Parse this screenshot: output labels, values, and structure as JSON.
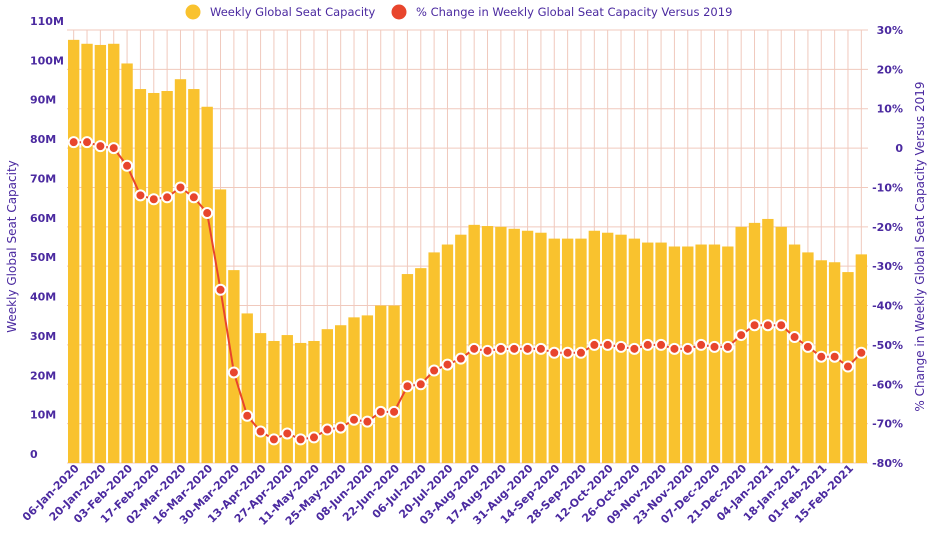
{
  "chart_data": {
    "type": "bar",
    "title": "",
    "legend": [
      "Weekly Global Seat Capacity",
      "% Change in Weekly Global Seat Capacity Versus 2019"
    ],
    "legend_position": "top-center",
    "ylabel": "Weekly Global Seat Capacity",
    "y2label": "% Change in Weekly Global Seat Capacity Versus 2019",
    "ylim": [
      0,
      110
    ],
    "y2lim": [
      -80,
      30
    ],
    "y_ticks": [
      "0",
      "10M",
      "20M",
      "30M",
      "40M",
      "50M",
      "60M",
      "70M",
      "80M",
      "90M",
      "100M",
      "110M"
    ],
    "y2_ticks": [
      "-80%",
      "-70%",
      "-60%",
      "-50%",
      "-40%",
      "-30%",
      "-20%",
      "-10%",
      "0",
      "10%",
      "20%",
      "30%"
    ],
    "x_tick_labels": [
      "06-Jan-2020",
      "20-Jan-2020",
      "03-Feb-2020",
      "17-Feb-2020",
      "02-Mar-2020",
      "16-Mar-2020",
      "30-Mar-2020",
      "13-Apr-2020",
      "27-Apr-2020",
      "11-May-2020",
      "25-May-2020",
      "08-Jun-2020",
      "22-Jun-2020",
      "06-Jul-2020",
      "20-Jul-2020",
      "03-Aug-2020",
      "17-Aug-2020",
      "31-Aug-2020",
      "14-Sep-2020",
      "28-Sep-2020",
      "12-Oct-2020",
      "26-Oct-2020",
      "09-Nov-2020",
      "23-Nov-2020",
      "07-Dec-2020",
      "21-Dec-2020",
      "04-Jan-2021",
      "18-Jan-2021",
      "01-Feb-2021",
      "15-Feb-2021"
    ],
    "grid": true,
    "colors": {
      "bar": "#F9C22E",
      "line": "#E8452C",
      "marker_fill": "#E8452C",
      "marker_ring": "#ffffff",
      "text": "#4b2aa0",
      "grid": "#f0c9bd"
    },
    "series": [
      {
        "name": "Weekly Global Seat Capacity",
        "unit": "M",
        "values": [
          107.5,
          106.5,
          106.2,
          106.5,
          101.5,
          95,
          94,
          94.5,
          97.5,
          95,
          90.5,
          69.5,
          49,
          38,
          33,
          31,
          32.5,
          30.5,
          31,
          34,
          35,
          37,
          37.5,
          40,
          40,
          48,
          49.5,
          53.5,
          55.5,
          58,
          60.5,
          60.2,
          60,
          59.5,
          59,
          58.5,
          57,
          57,
          57,
          59,
          58.5,
          58,
          57,
          56,
          56,
          55,
          55,
          55.5,
          55.5,
          55,
          60,
          61,
          62,
          60,
          55.5,
          53.5,
          51.5,
          51,
          48.5,
          53
        ]
      },
      {
        "name": "% Change in Weekly Global Seat Capacity Versus 2019",
        "unit": "%",
        "axis": "right",
        "values": [
          1.5,
          1.5,
          0.5,
          0,
          -4.5,
          -12,
          -13,
          -12.5,
          -10,
          -12.5,
          -16.5,
          -36,
          -57,
          -68,
          -72,
          -74,
          -72.5,
          -74,
          -73.5,
          -71.5,
          -71,
          -69,
          -69.5,
          -67,
          -67,
          -60.5,
          -60,
          -56.5,
          -55,
          -53.5,
          -51,
          -51.5,
          -51,
          -51,
          -51,
          -51,
          -52,
          -52,
          -52,
          -50,
          -50,
          -50.5,
          -51,
          -50,
          -50,
          -51,
          -51,
          -50,
          -50.5,
          -50.5,
          -47.5,
          -45,
          -45,
          -45,
          -48,
          -50.5,
          -53,
          -53,
          -55.5,
          -52
        ]
      }
    ]
  }
}
